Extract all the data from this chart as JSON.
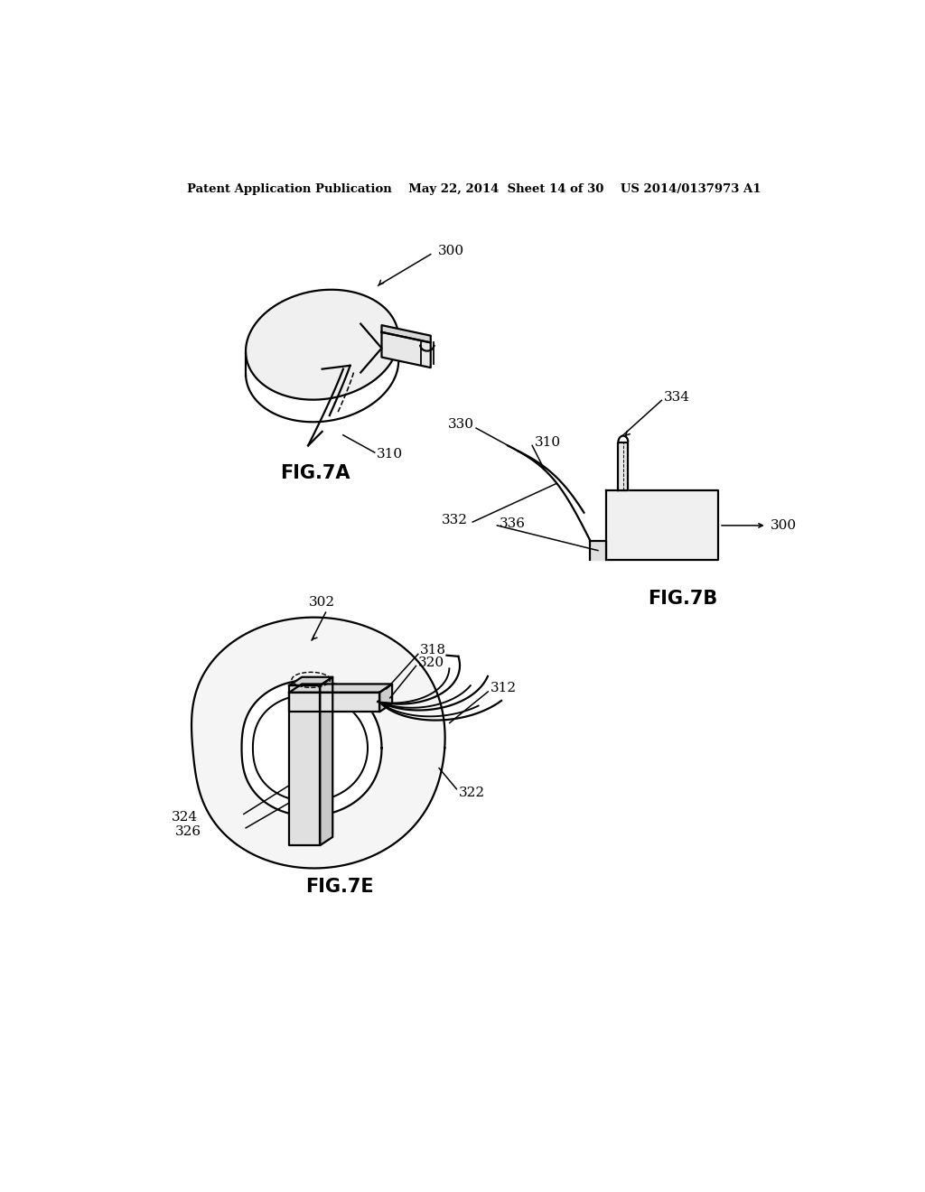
{
  "bg_color": "#ffffff",
  "header": "Patent Application Publication    May 22, 2014  Sheet 14 of 30    US 2014/0137973 A1",
  "fig7a_label": "FIG.7A",
  "fig7b_label": "FIG.7B",
  "fig7e_label": "FIG.7E",
  "line_color": "#000000",
  "text_color": "#000000"
}
